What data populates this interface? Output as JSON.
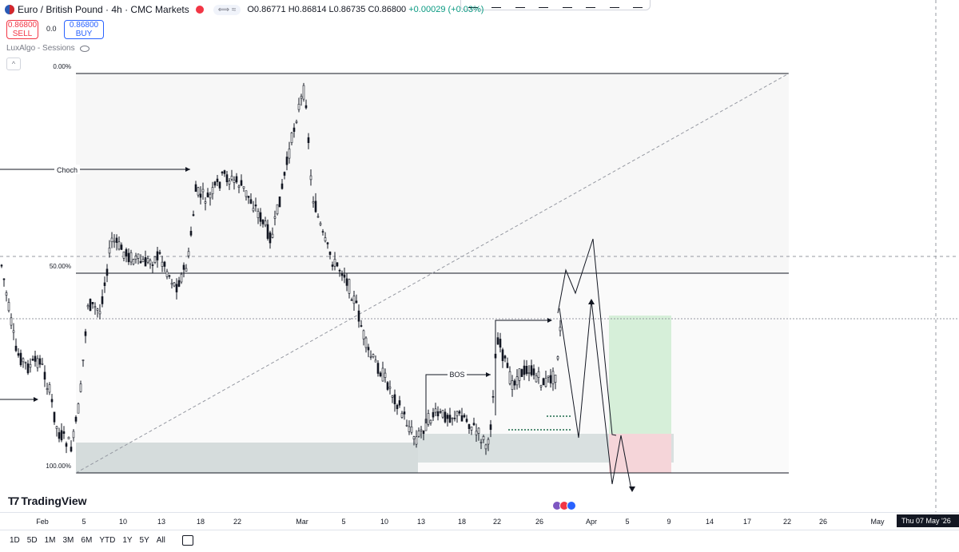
{
  "header": {
    "symbol_title": "Euro / British Pound · 4h · CMC Markets",
    "pill_text": "⟺ ≈",
    "ohlc": {
      "open": "O0.86771",
      "high": "H0.86814",
      "low": "L0.86735",
      "close": "C0.86800",
      "change": "+0.00029 (+0.03%)"
    }
  },
  "trade": {
    "sell_price": "0.86800",
    "sell_label": "SELL",
    "spread": "0.0",
    "buy_price": "0.86800",
    "buy_label": "BUY"
  },
  "indicator": {
    "name": "LuxAlgo - Sessions"
  },
  "fib_labels": {
    "top": "0.00%",
    "mid": "50.00%",
    "bottom": "100.00%"
  },
  "annotations": {
    "choch": "Choch",
    "bos": "BOS"
  },
  "brand": {
    "name": "TradingView"
  },
  "x_axis": {
    "labels": [
      "Feb",
      "5",
      "10",
      "13",
      "18",
      "22",
      "Mar",
      "5",
      "10",
      "13",
      "18",
      "22",
      "26",
      "Apr",
      "5",
      "9",
      "14",
      "17",
      "22",
      "26",
      "May"
    ],
    "crosshair_date": "Thu 07 May '26"
  },
  "time_ranges": [
    "1D",
    "5D",
    "1M",
    "3M",
    "6M",
    "YTD",
    "1Y",
    "5Y",
    "All"
  ],
  "colors": {
    "up": "#131722",
    "down": "#131722",
    "profit_zone": "#d7f0db",
    "loss_zone": "#f6d6da",
    "demand_zone": "#d4dbdb",
    "fib_zone": "#f5f5f5"
  }
}
